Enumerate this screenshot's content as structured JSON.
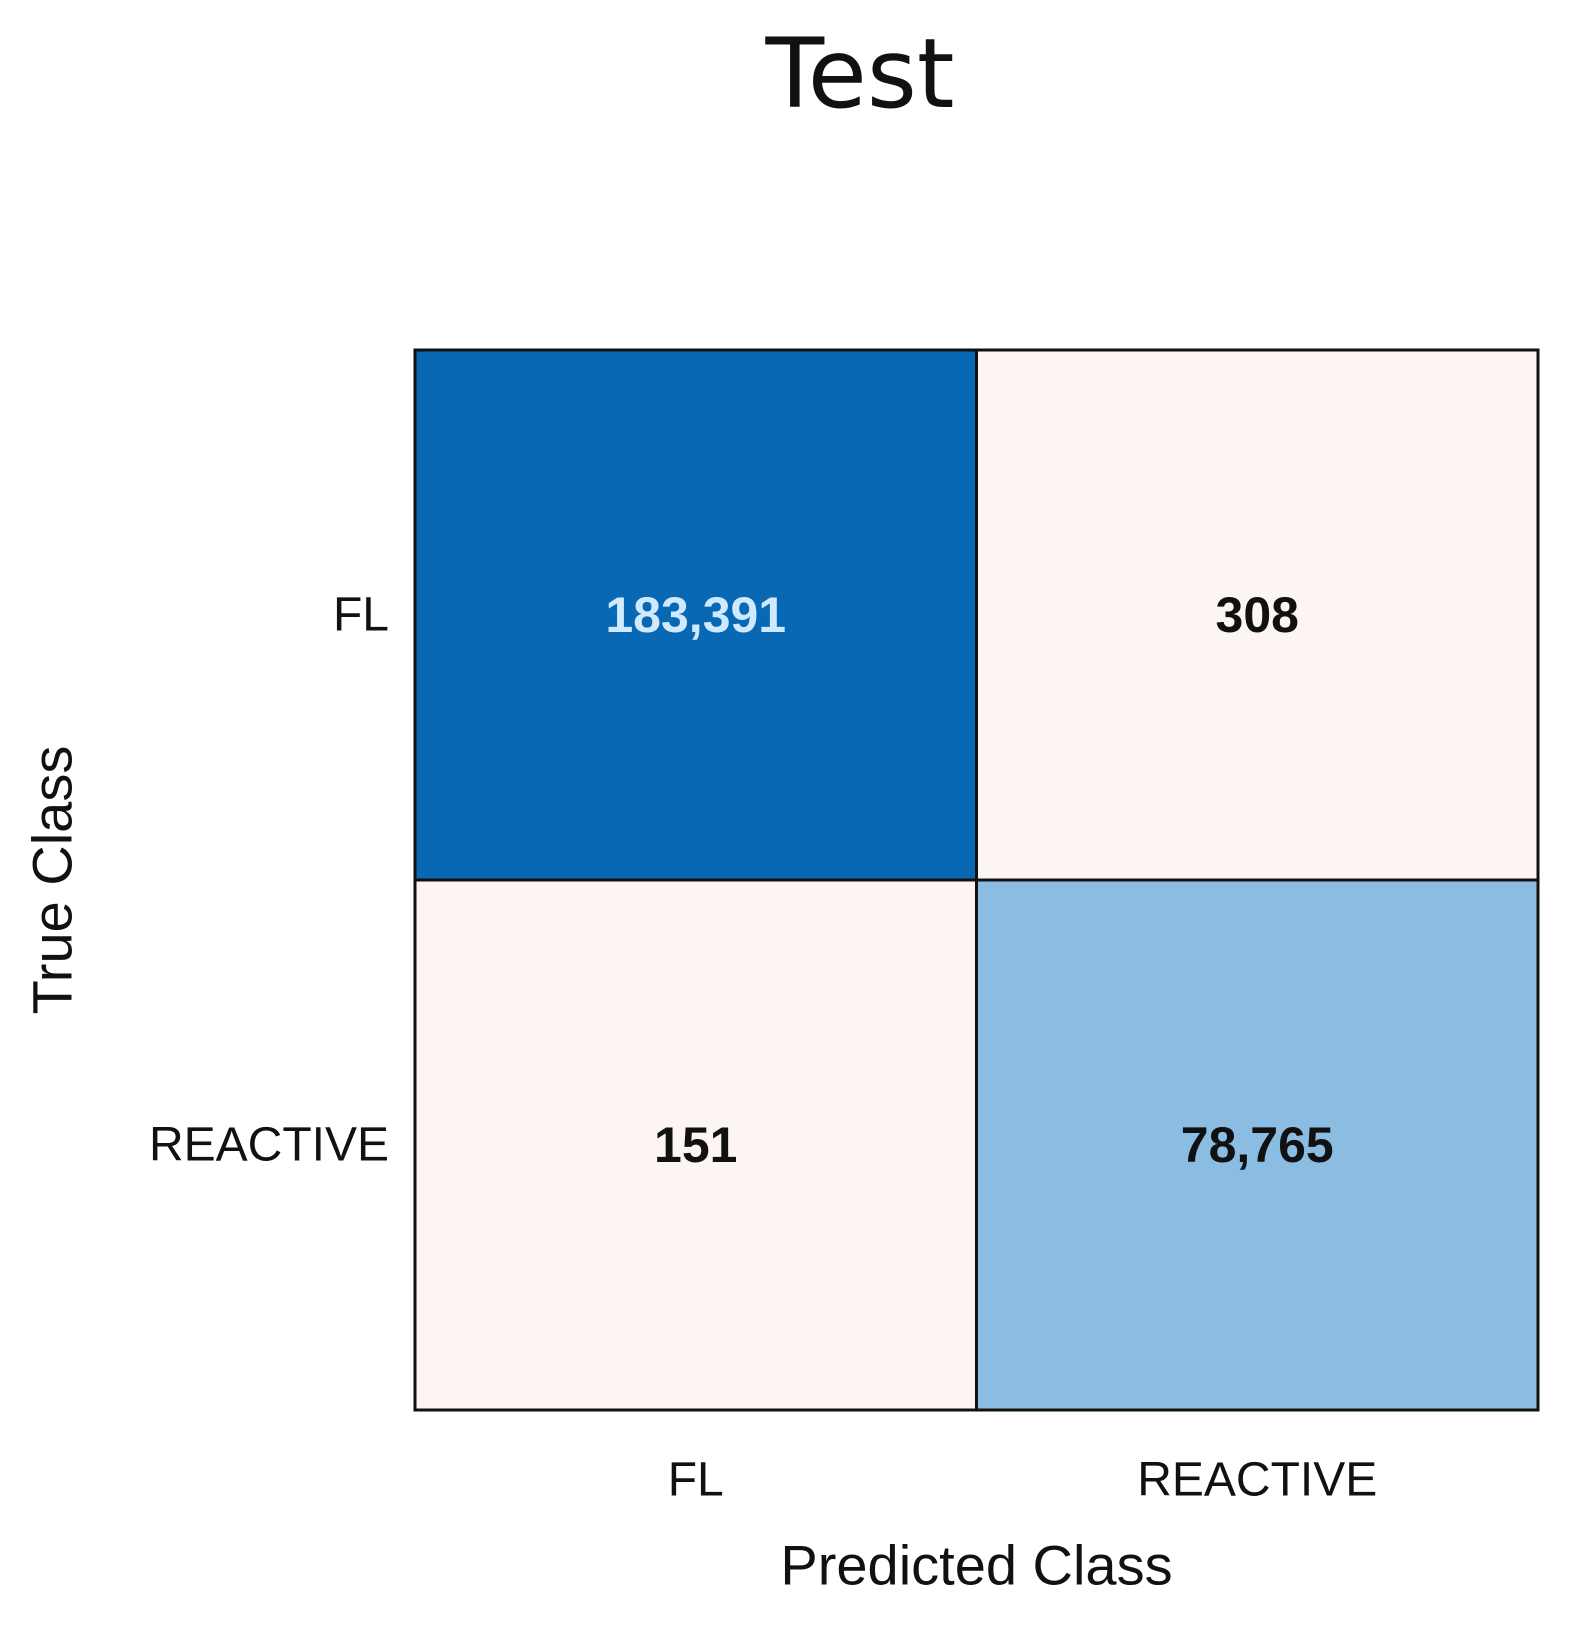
{
  "chart_data": {
    "type": "heatmap",
    "title": "Test",
    "xlabel": "Predicted Class",
    "ylabel": "True Class",
    "x_categories": [
      "FL",
      "REACTIVE"
    ],
    "y_categories": [
      "FL",
      "REACTIVE"
    ],
    "cells": [
      {
        "true": "FL",
        "predicted": "FL",
        "value": 183391,
        "label": "183,391",
        "fill": "#0868b4",
        "text_color": "#cfe9ff"
      },
      {
        "true": "FL",
        "predicted": "REACTIVE",
        "value": 308,
        "label": "308",
        "fill": "#fdf5f2",
        "text_color": "#111111"
      },
      {
        "true": "REACTIVE",
        "predicted": "FL",
        "value": 151,
        "label": "151",
        "fill": "#fdf5f2",
        "text_color": "#111111"
      },
      {
        "true": "REACTIVE",
        "predicted": "REACTIVE",
        "value": 78765,
        "label": "78,765",
        "fill": "#8abde1",
        "text_color": "#111111"
      }
    ]
  }
}
